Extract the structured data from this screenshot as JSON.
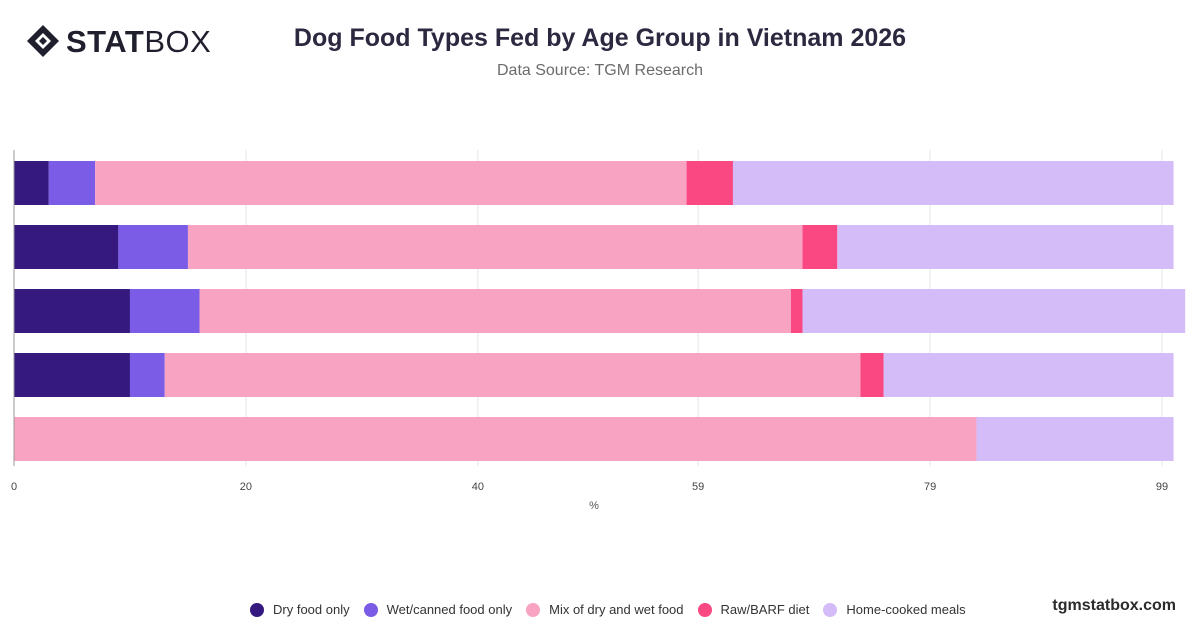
{
  "brand": {
    "logo_strong": "STAT",
    "logo_light": "BOX",
    "watermark": "tgmstatbox.com"
  },
  "header": {
    "title": "Dog Food Types Fed by Age Group in Vietnam 2026",
    "subtitle": "Data Source: TGM Research"
  },
  "colors": {
    "dry": "#35197f",
    "wet": "#7b5ce6",
    "mix": "#f9a3c2",
    "raw": "#fa4883",
    "home": "#d4bcf8",
    "grid": "#e6e6e6",
    "axis": "#999999"
  },
  "chart_data": {
    "type": "bar",
    "orientation": "horizontal",
    "stacked": true,
    "categories": [
      "",
      "",
      "",
      "",
      ""
    ],
    "xlabel": "%",
    "ylabel": "",
    "xlim": [
      0,
      100
    ],
    "x_ticks": [
      0,
      20,
      40,
      59,
      79,
      99
    ],
    "grid": true,
    "legend_position": "bottom",
    "series": [
      {
        "name": "Dry food only",
        "color": "#35197f",
        "values": [
          3,
          9,
          10,
          10,
          0
        ]
      },
      {
        "name": "Wet/canned food only",
        "color": "#7b5ce6",
        "values": [
          4,
          6,
          6,
          3,
          0
        ]
      },
      {
        "name": "Mix of dry and wet food",
        "color": "#f9a3c2",
        "values": [
          51,
          53,
          51,
          60,
          83
        ]
      },
      {
        "name": "Raw/BARF diet",
        "color": "#fa4883",
        "values": [
          4,
          3,
          1,
          2,
          0
        ]
      },
      {
        "name": "Home-cooked meals",
        "color": "#d4bcf8",
        "values": [
          38,
          29,
          33,
          25,
          17
        ]
      }
    ]
  }
}
